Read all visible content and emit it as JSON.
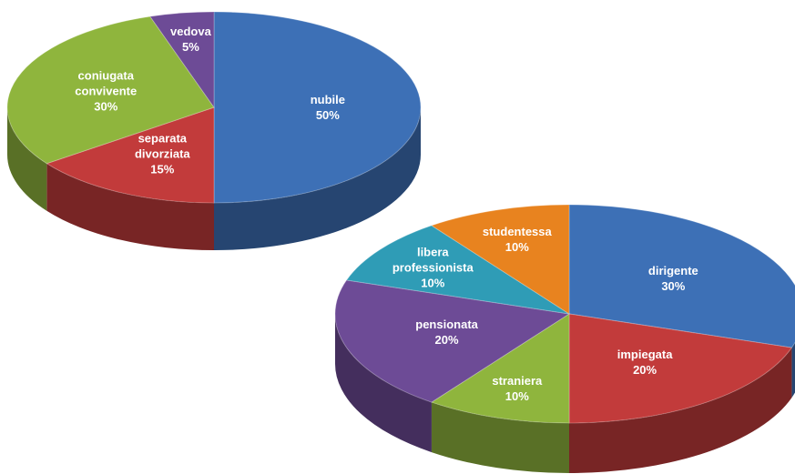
{
  "chart_data": [
    {
      "type": "pie",
      "categories": [
        "nubile",
        "separata divorziata",
        "coniugata convivente",
        "vedova"
      ],
      "values": [
        50,
        15,
        30,
        5
      ],
      "value_labels": [
        "50%",
        "15%",
        "30%",
        "5%"
      ],
      "colors": [
        "#3d70b6",
        "#c23b3b",
        "#8fb53d",
        "#6d4b96"
      ]
    },
    {
      "type": "pie",
      "categories": [
        "dirigente",
        "impiegata",
        "straniera",
        "pensionata",
        "libera professionista",
        "studentessa"
      ],
      "values": [
        30,
        20,
        10,
        20,
        10,
        10
      ],
      "value_labels": [
        "30%",
        "20%",
        "10%",
        "20%",
        "10%",
        "10%"
      ],
      "colors": [
        "#3d70b6",
        "#c23b3b",
        "#8fb53d",
        "#6d4b96",
        "#2f9cb6",
        "#e8831f"
      ]
    }
  ]
}
